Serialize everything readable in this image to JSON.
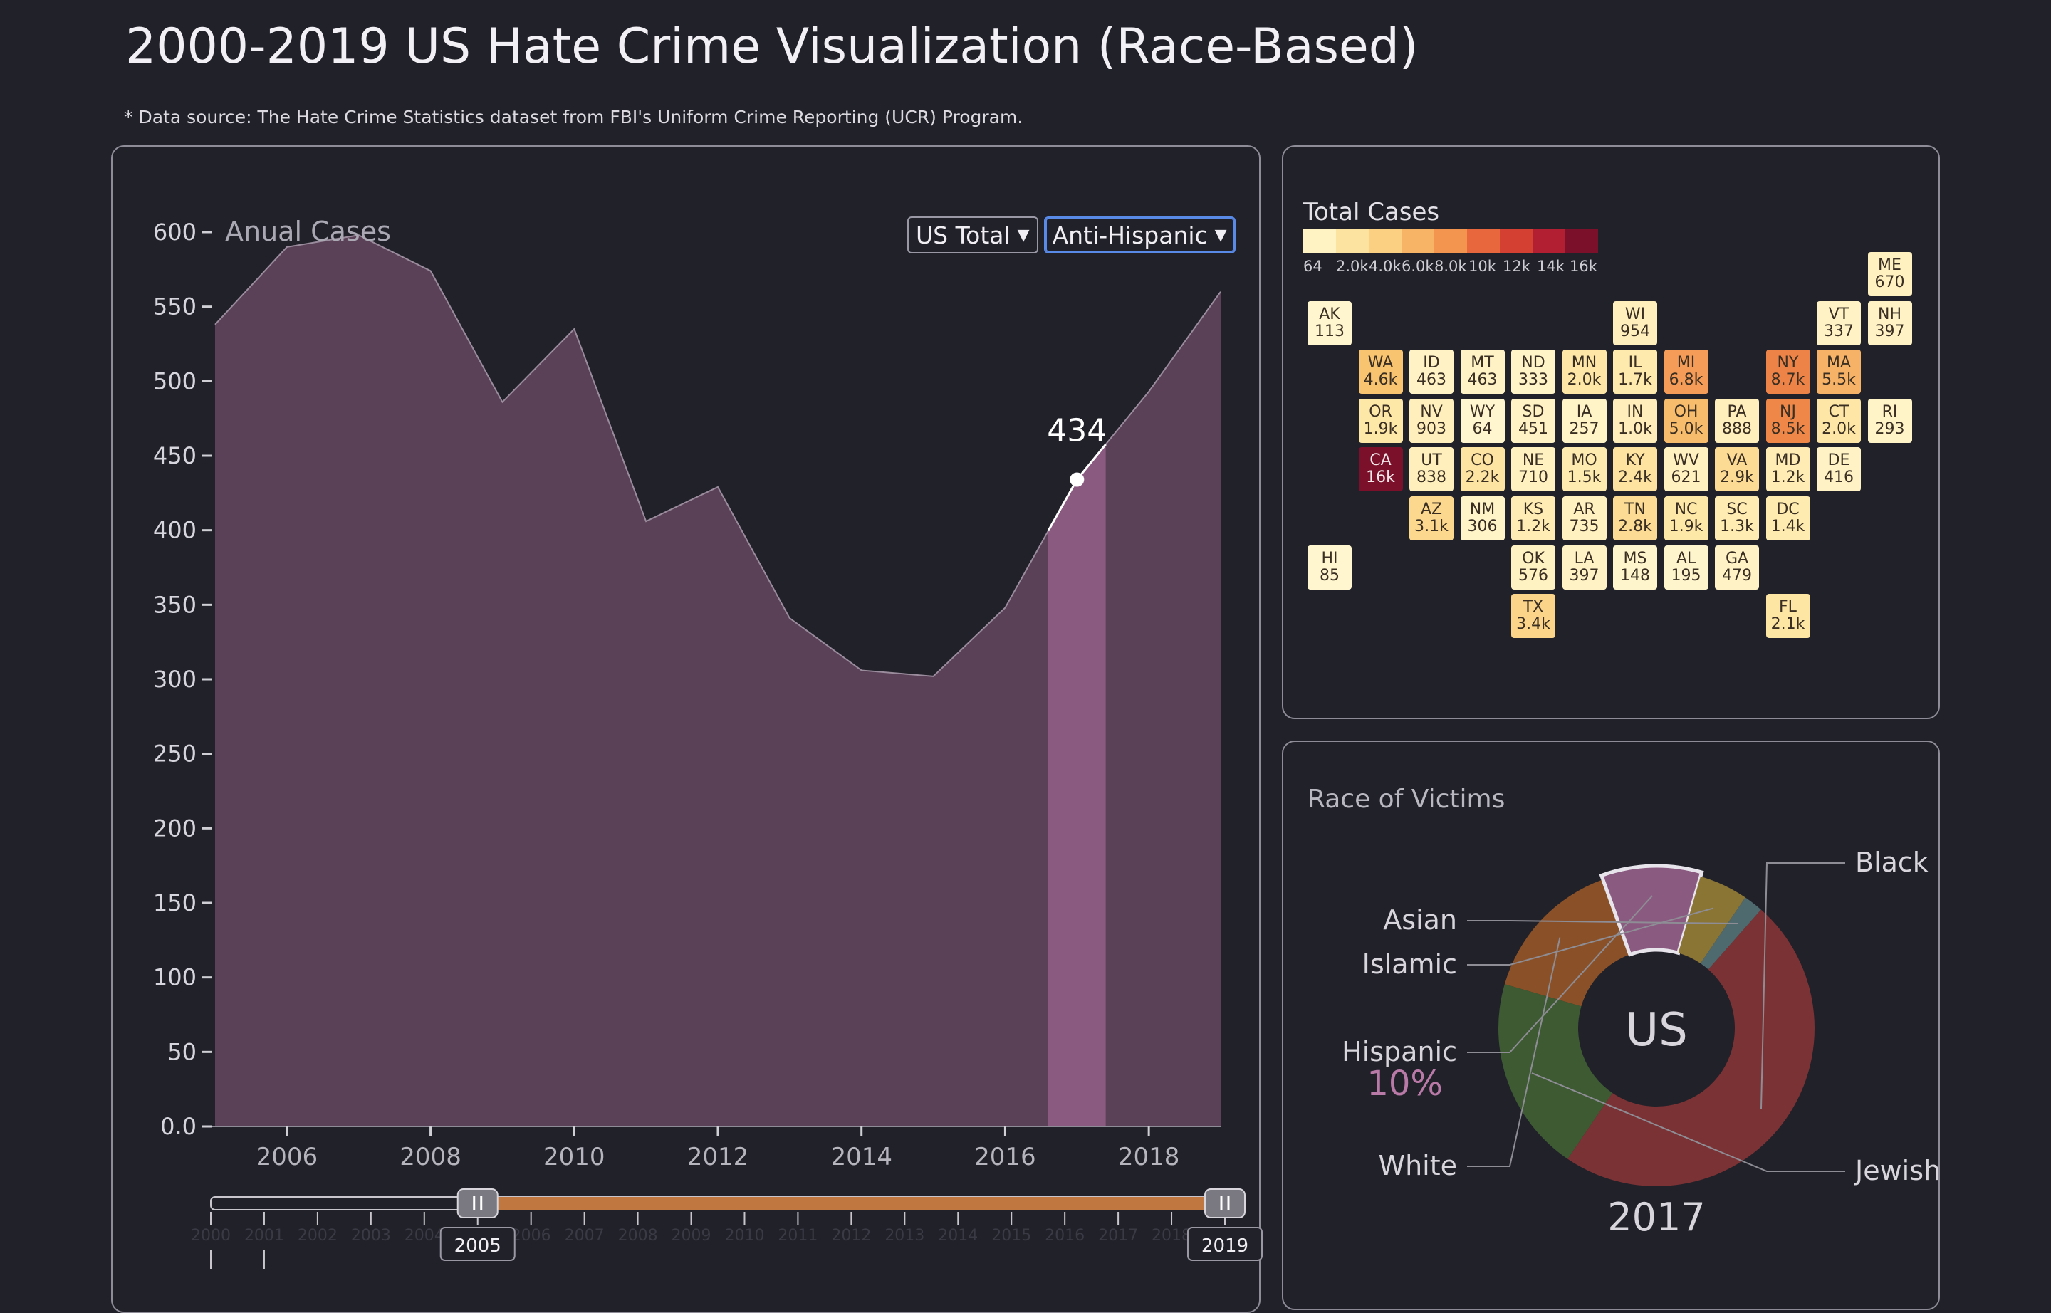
{
  "page": {
    "title": "2000-2019 US Hate Crime Visualization (Race-Based)",
    "source": "* Data source: The Hate Crime Statistics dataset from FBI's Uniform Crime Reporting (UCR) Program."
  },
  "controls": {
    "region_select": "US Total",
    "bias_select": "Anti-Hispanic"
  },
  "colors": {
    "area_fill": "#5a4157",
    "area_highlight": "#8b5a80",
    "slider_track": "#c07840",
    "background": "#21212a"
  },
  "chart_data": [
    {
      "type": "area",
      "title": "Anual Cases",
      "x": [
        2005,
        2006,
        2007,
        2008,
        2009,
        2010,
        2011,
        2012,
        2013,
        2014,
        2015,
        2016,
        2017,
        2018,
        2019
      ],
      "values": [
        538,
        590,
        598,
        574,
        486,
        535,
        406,
        429,
        341,
        306,
        302,
        348,
        434,
        493,
        560
      ],
      "xlim": [
        2005,
        2019
      ],
      "ylim": [
        0,
        600
      ],
      "yticks": [
        "0.0",
        "50",
        "100",
        "150",
        "200",
        "250",
        "300",
        "350",
        "400",
        "450",
        "500",
        "550",
        "600"
      ],
      "xticks": [
        "2006",
        "2008",
        "2010",
        "2012",
        "2014",
        "2016",
        "2018"
      ],
      "highlight": {
        "year": 2017,
        "label": "434"
      },
      "range_slider": {
        "years": [
          "2000",
          "2001",
          "2002",
          "2003",
          "2004",
          "2005",
          "2006",
          "2007",
          "2008",
          "2009",
          "2010",
          "2011",
          "2012",
          "2013",
          "2014",
          "2015",
          "2016",
          "2017",
          "2018",
          "2019"
        ],
        "start": "2005",
        "end": "2019"
      }
    },
    {
      "type": "heatmap",
      "title": "Total Cases",
      "legend_labels": [
        "64",
        "2.0k",
        "4.0k",
        "6.0k",
        "8.0k",
        "10k",
        "12k",
        "14k",
        "16k"
      ],
      "legend_colors": [
        "#fff3c4",
        "#fde3a0",
        "#fcd083",
        "#f8b466",
        "#f4954f",
        "#e8673c",
        "#d44032",
        "#b21f33",
        "#7a1029"
      ],
      "states": [
        {
          "abbr": "ME",
          "value": "670",
          "col": 11,
          "row": 0,
          "color": "#fff1c0"
        },
        {
          "abbr": "AK",
          "value": "113",
          "col": 0,
          "row": 1,
          "color": "#fff6cf"
        },
        {
          "abbr": "WI",
          "value": "954",
          "col": 6,
          "row": 1,
          "color": "#ffefbc"
        },
        {
          "abbr": "VT",
          "value": "337",
          "col": 10,
          "row": 1,
          "color": "#fff3c6"
        },
        {
          "abbr": "NH",
          "value": "397",
          "col": 11,
          "row": 1,
          "color": "#fff3c6"
        },
        {
          "abbr": "WA",
          "value": "4.6k",
          "col": 1,
          "row": 2,
          "color": "#f8c470"
        },
        {
          "abbr": "ID",
          "value": "463",
          "col": 2,
          "row": 2,
          "color": "#fff3c6"
        },
        {
          "abbr": "MT",
          "value": "463",
          "col": 3,
          "row": 2,
          "color": "#fff3c6"
        },
        {
          "abbr": "ND",
          "value": "333",
          "col": 4,
          "row": 2,
          "color": "#fff4c8"
        },
        {
          "abbr": "MN",
          "value": "2.0k",
          "col": 5,
          "row": 2,
          "color": "#fde6a6"
        },
        {
          "abbr": "IL",
          "value": "1.7k",
          "col": 6,
          "row": 2,
          "color": "#feeaac"
        },
        {
          "abbr": "MI",
          "value": "6.8k",
          "col": 7,
          "row": 2,
          "color": "#f49c58"
        },
        {
          "abbr": "NY",
          "value": "8.7k",
          "col": 9,
          "row": 2,
          "color": "#ee8347"
        },
        {
          "abbr": "MA",
          "value": "5.5k",
          "col": 10,
          "row": 2,
          "color": "#f6b266"
        },
        {
          "abbr": "OR",
          "value": "1.9k",
          "col": 1,
          "row": 3,
          "color": "#fee8a8"
        },
        {
          "abbr": "NV",
          "value": "903",
          "col": 2,
          "row": 3,
          "color": "#ffefbc"
        },
        {
          "abbr": "WY",
          "value": "64",
          "col": 3,
          "row": 3,
          "color": "#fff6cf"
        },
        {
          "abbr": "SD",
          "value": "451",
          "col": 4,
          "row": 3,
          "color": "#fff3c6"
        },
        {
          "abbr": "IA",
          "value": "257",
          "col": 5,
          "row": 3,
          "color": "#fff4c8"
        },
        {
          "abbr": "IN",
          "value": "1.0k",
          "col": 6,
          "row": 3,
          "color": "#ffeebb"
        },
        {
          "abbr": "OH",
          "value": "5.0k",
          "col": 7,
          "row": 3,
          "color": "#f7bc6c"
        },
        {
          "abbr": "PA",
          "value": "888",
          "col": 8,
          "row": 3,
          "color": "#ffefbc"
        },
        {
          "abbr": "NJ",
          "value": "8.5k",
          "col": 9,
          "row": 3,
          "color": "#ef8748"
        },
        {
          "abbr": "CT",
          "value": "2.0k",
          "col": 10,
          "row": 3,
          "color": "#fde6a6"
        },
        {
          "abbr": "RI",
          "value": "293",
          "col": 11,
          "row": 3,
          "color": "#fff4c8"
        },
        {
          "abbr": "CA",
          "value": "16k",
          "col": 1,
          "row": 4,
          "color": "#7a1029"
        },
        {
          "abbr": "UT",
          "value": "838",
          "col": 2,
          "row": 4,
          "color": "#ffefbc"
        },
        {
          "abbr": "CO",
          "value": "2.2k",
          "col": 3,
          "row": 4,
          "color": "#fde4a2"
        },
        {
          "abbr": "NE",
          "value": "710",
          "col": 4,
          "row": 4,
          "color": "#fff1c0"
        },
        {
          "abbr": "MO",
          "value": "1.5k",
          "col": 5,
          "row": 4,
          "color": "#feebb0"
        },
        {
          "abbr": "KY",
          "value": "2.4k",
          "col": 6,
          "row": 4,
          "color": "#fde2a0"
        },
        {
          "abbr": "WV",
          "value": "621",
          "col": 7,
          "row": 4,
          "color": "#fff1c0"
        },
        {
          "abbr": "VA",
          "value": "2.9k",
          "col": 8,
          "row": 4,
          "color": "#fcdb94"
        },
        {
          "abbr": "MD",
          "value": "1.2k",
          "col": 9,
          "row": 4,
          "color": "#feecb4"
        },
        {
          "abbr": "DE",
          "value": "416",
          "col": 10,
          "row": 4,
          "color": "#fff3c6"
        },
        {
          "abbr": "AZ",
          "value": "3.1k",
          "col": 2,
          "row": 5,
          "color": "#fcd88e"
        },
        {
          "abbr": "NM",
          "value": "306",
          "col": 3,
          "row": 5,
          "color": "#fff4c8"
        },
        {
          "abbr": "KS",
          "value": "1.2k",
          "col": 4,
          "row": 5,
          "color": "#feecb4"
        },
        {
          "abbr": "AR",
          "value": "735",
          "col": 5,
          "row": 5,
          "color": "#fff1c0"
        },
        {
          "abbr": "TN",
          "value": "2.8k",
          "col": 6,
          "row": 5,
          "color": "#fcdb94"
        },
        {
          "abbr": "NC",
          "value": "1.9k",
          "col": 7,
          "row": 5,
          "color": "#fee8a8"
        },
        {
          "abbr": "SC",
          "value": "1.3k",
          "col": 8,
          "row": 5,
          "color": "#feecb2"
        },
        {
          "abbr": "DC",
          "value": "1.4k",
          "col": 9,
          "row": 5,
          "color": "#feebb0"
        },
        {
          "abbr": "HI",
          "value": "85",
          "col": 0,
          "row": 6,
          "color": "#fff6cf"
        },
        {
          "abbr": "OK",
          "value": "576",
          "col": 4,
          "row": 6,
          "color": "#fff2c2"
        },
        {
          "abbr": "LA",
          "value": "397",
          "col": 5,
          "row": 6,
          "color": "#fff3c6"
        },
        {
          "abbr": "MS",
          "value": "148",
          "col": 6,
          "row": 6,
          "color": "#fff5cc"
        },
        {
          "abbr": "AL",
          "value": "195",
          "col": 7,
          "row": 6,
          "color": "#fff5cc"
        },
        {
          "abbr": "GA",
          "value": "479",
          "col": 8,
          "row": 6,
          "color": "#fff3c6"
        },
        {
          "abbr": "TX",
          "value": "3.4k",
          "col": 4,
          "row": 7,
          "color": "#fbd48a"
        },
        {
          "abbr": "FL",
          "value": "2.1k",
          "col": 9,
          "row": 7,
          "color": "#fde5a4"
        }
      ]
    },
    {
      "type": "pie",
      "title": "Race of Victims",
      "center_label": "US",
      "year_label": "2017",
      "highlight": {
        "name": "Hispanic",
        "percent": "10%"
      },
      "series": [
        {
          "name": "Black",
          "value": 48,
          "color": "#7a3234"
        },
        {
          "name": "Jewish",
          "value": 20,
          "color": "#3d5a33"
        },
        {
          "name": "White",
          "value": 15,
          "color": "#8a5128"
        },
        {
          "name": "Hispanic",
          "value": 10,
          "color": "#8b5a80"
        },
        {
          "name": "Islamic",
          "value": 5,
          "color": "#8a7535"
        },
        {
          "name": "Asian",
          "value": 2,
          "color": "#4e6a6e"
        }
      ]
    }
  ]
}
